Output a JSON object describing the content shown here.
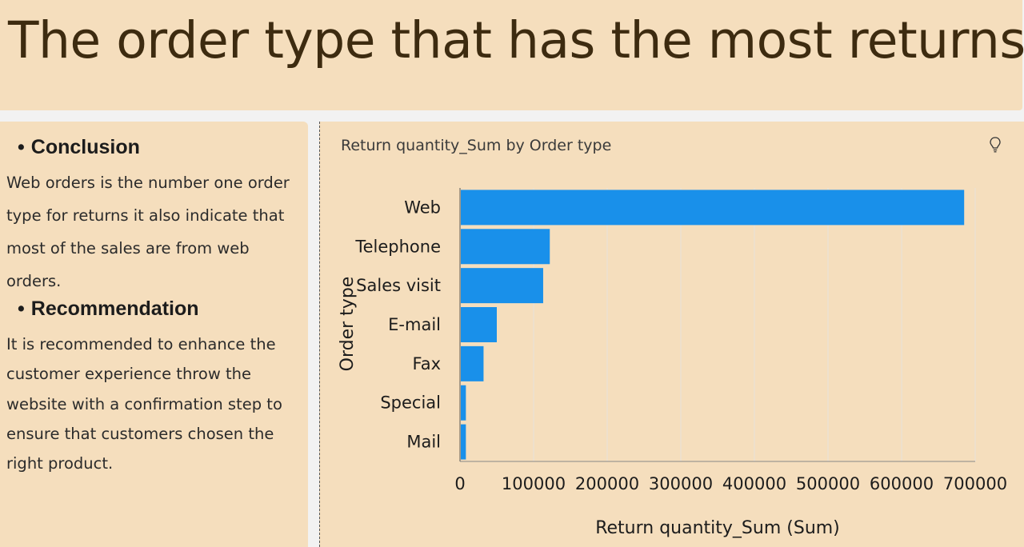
{
  "page": {
    "title": "The order type that has the most returns"
  },
  "sidebar": {
    "conclusion_heading": "Conclusion",
    "conclusion_text": "Web orders is the number one order type for returns it also indicate that most of the sales are from web orders.",
    "recommendation_heading": "Recommendation",
    "recommendation_text": "It is recommended to enhance the customer experience throw the website with a confirmation step to ensure that customers chosen the right product."
  },
  "visualization": {
    "title": "Return quantity_Sum by Order type",
    "icon": "lightbulb-icon"
  },
  "colors": {
    "panel": "#f5debd",
    "bar": "#1990ea",
    "title_text": "#3d2b10"
  },
  "chart_data": {
    "type": "bar",
    "orientation": "horizontal",
    "categories": [
      "Web",
      "Telephone",
      "Sales visit",
      "E-mail",
      "Fax",
      "Special",
      "Mail"
    ],
    "values": [
      685000,
      122000,
      113000,
      50000,
      32000,
      8000,
      8000
    ],
    "xlabel": "Return quantity_Sum (Sum)",
    "ylabel": "Order type",
    "xlim": [
      0,
      700000
    ],
    "x_ticks": [
      "0",
      "100000",
      "200000",
      "300000",
      "400000",
      "500000",
      "600000",
      "700000"
    ],
    "grid": true
  }
}
